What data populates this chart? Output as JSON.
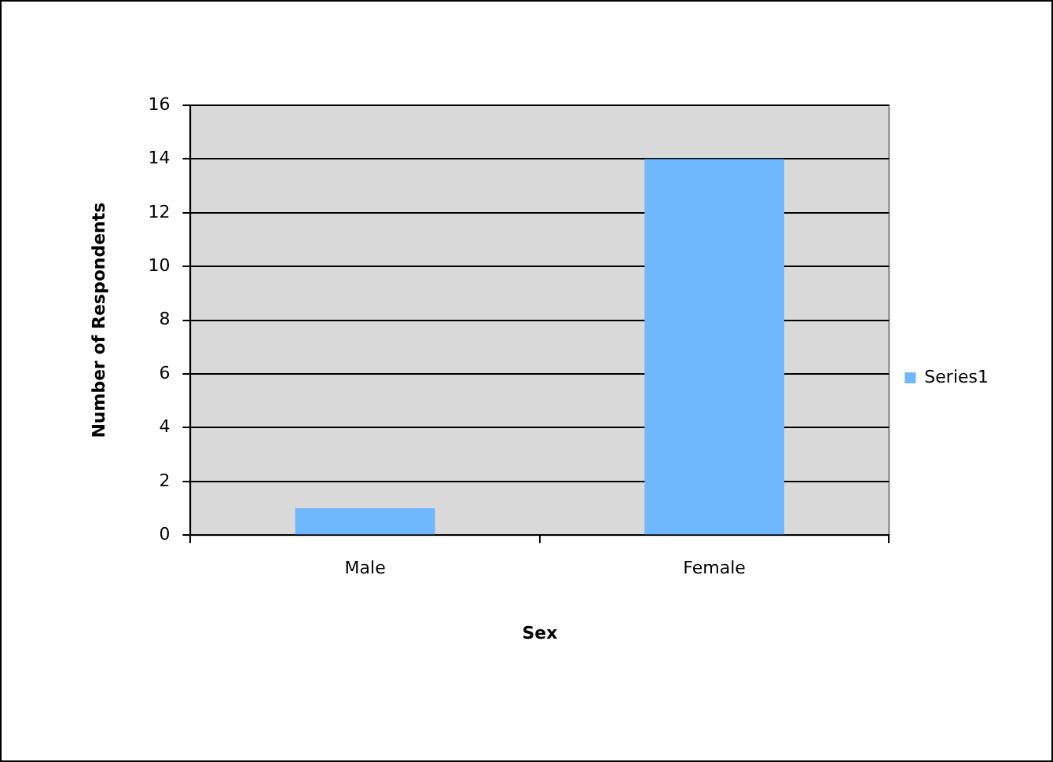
{
  "chart_data": {
    "type": "bar",
    "xlabel": "Sex",
    "ylabel": "Number of Respondents",
    "categories": [
      "Male",
      "Female"
    ],
    "series": [
      {
        "name": "Series1",
        "color": "#6fb7ff",
        "values": [
          1,
          14
        ]
      }
    ],
    "ylim": [
      0,
      16
    ],
    "yticks": [
      0,
      2,
      4,
      6,
      8,
      10,
      12,
      14,
      16
    ],
    "grid": "y",
    "legend": "right"
  }
}
